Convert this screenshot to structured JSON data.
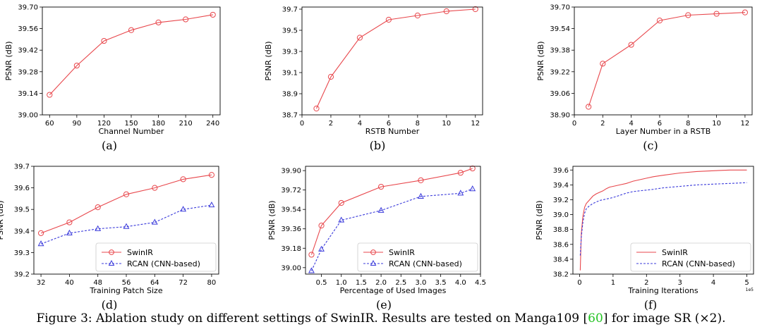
{
  "chart_data": [
    {
      "id": "a",
      "panel_label": "(a)",
      "type": "line",
      "xlabel": "Channel Number",
      "ylabel": "PSNR (dB)",
      "xlim": [
        52,
        248
      ],
      "ylim": [
        39.0,
        39.7
      ],
      "xticks": [
        60,
        90,
        120,
        150,
        180,
        210,
        240
      ],
      "xtick_labels": [
        "60",
        "90",
        "120",
        "150",
        "180",
        "210",
        "240"
      ],
      "yticks": [
        39.0,
        39.14,
        39.28,
        39.42,
        39.56,
        39.7
      ],
      "ytick_labels": [
        "39.00",
        "39.14",
        "39.28",
        "39.42",
        "39.56",
        "39.70"
      ],
      "series": [
        {
          "x": [
            60,
            90,
            120,
            150,
            180,
            210,
            240
          ],
          "y": [
            39.13,
            39.32,
            39.48,
            39.55,
            39.6,
            39.62,
            39.65
          ],
          "color": "#e8474c",
          "marker": "circle",
          "dash": "solid"
        }
      ]
    },
    {
      "id": "b",
      "panel_label": "(b)",
      "type": "line",
      "xlabel": "RSTB Number",
      "ylabel": "PSNR (dB)",
      "xlim": [
        0,
        12.5
      ],
      "ylim": [
        38.7,
        39.72
      ],
      "xticks": [
        0,
        2,
        4,
        6,
        8,
        10,
        12
      ],
      "xtick_labels": [
        "0",
        "2",
        "4",
        "6",
        "8",
        "10",
        "12"
      ],
      "yticks": [
        38.7,
        38.9,
        39.1,
        39.3,
        39.5,
        39.7
      ],
      "ytick_labels": [
        "38.7",
        "38.9",
        "39.1",
        "39.3",
        "39.5",
        "39.7"
      ],
      "series": [
        {
          "x": [
            1,
            2,
            4,
            6,
            8,
            10,
            12
          ],
          "y": [
            38.76,
            39.06,
            39.43,
            39.6,
            39.64,
            39.68,
            39.7
          ],
          "color": "#e8474c",
          "marker": "circle",
          "dash": "solid"
        }
      ]
    },
    {
      "id": "c",
      "panel_label": "(c)",
      "type": "line",
      "xlabel": "Layer Number in a RSTB",
      "ylabel": "PSNR (dB)",
      "xlim": [
        0,
        12.5
      ],
      "ylim": [
        38.9,
        39.7
      ],
      "xticks": [
        0,
        2,
        4,
        6,
        8,
        10,
        12
      ],
      "xtick_labels": [
        "0",
        "2",
        "4",
        "6",
        "8",
        "10",
        "12"
      ],
      "yticks": [
        38.9,
        39.06,
        39.22,
        39.38,
        39.54,
        39.7
      ],
      "ytick_labels": [
        "38.90",
        "39.06",
        "39.22",
        "39.38",
        "39.54",
        "39.70"
      ],
      "series": [
        {
          "x": [
            1,
            2,
            4,
            6,
            8,
            10,
            12
          ],
          "y": [
            38.96,
            39.28,
            39.42,
            39.6,
            39.64,
            39.65,
            39.66
          ],
          "color": "#e8474c",
          "marker": "circle",
          "dash": "solid"
        }
      ]
    },
    {
      "id": "d",
      "panel_label": "(d)",
      "type": "line",
      "xlabel": "Training Patch Size",
      "ylabel": "PSNR (dB)",
      "xlim": [
        30,
        82
      ],
      "ylim": [
        39.2,
        39.7
      ],
      "xticks": [
        32,
        40,
        48,
        56,
        64,
        72,
        80
      ],
      "xtick_labels": [
        "32",
        "40",
        "48",
        "56",
        "64",
        "72",
        "80"
      ],
      "yticks": [
        39.2,
        39.3,
        39.4,
        39.5,
        39.6,
        39.7
      ],
      "ytick_labels": [
        "39.2",
        "39.3",
        "39.4",
        "39.5",
        "39.6",
        "39.7"
      ],
      "legend": "lower-right",
      "series": [
        {
          "name": "SwinIR",
          "x": [
            32,
            40,
            48,
            56,
            64,
            72,
            80
          ],
          "y": [
            39.39,
            39.44,
            39.51,
            39.57,
            39.6,
            39.64,
            39.66
          ],
          "color": "#e8474c",
          "marker": "circle",
          "dash": "solid"
        },
        {
          "name": "RCAN (CNN-based)",
          "x": [
            32,
            40,
            48,
            56,
            64,
            72,
            80
          ],
          "y": [
            39.34,
            39.39,
            39.41,
            39.42,
            39.44,
            39.5,
            39.52
          ],
          "color": "#3b3bdb",
          "marker": "triangle",
          "dash": "dashed"
        }
      ]
    },
    {
      "id": "e",
      "panel_label": "(e)",
      "type": "line",
      "xlabel": "Percentage of Used Images",
      "ylabel": "PSNR (dB)",
      "xlim": [
        0.1,
        4.5
      ],
      "ylim": [
        38.94,
        39.94
      ],
      "xticks": [
        0.5,
        1.0,
        1.5,
        2.0,
        2.5,
        3.0,
        3.5,
        4.0,
        4.5
      ],
      "xtick_labels": [
        "0.5",
        "1.0",
        "1.5",
        "2.0",
        "2.5",
        "3.0",
        "3.5",
        "4.0",
        "4.5"
      ],
      "yticks": [
        39.0,
        39.18,
        39.36,
        39.54,
        39.72,
        39.9
      ],
      "ytick_labels": [
        "39.00",
        "39.18",
        "39.36",
        "39.54",
        "39.72",
        "39.90"
      ],
      "legend": "lower-right",
      "series": [
        {
          "name": "SwinIR",
          "x": [
            0.25,
            0.5,
            1.0,
            2.0,
            3.0,
            4.0,
            4.3
          ],
          "y": [
            39.12,
            39.39,
            39.6,
            39.75,
            39.81,
            39.88,
            39.92
          ],
          "color": "#e8474c",
          "marker": "circle",
          "dash": "solid"
        },
        {
          "name": "RCAN (CNN-based)",
          "x": [
            0.25,
            0.5,
            1.0,
            2.0,
            3.0,
            4.0,
            4.3
          ],
          "y": [
            38.97,
            39.17,
            39.44,
            39.53,
            39.66,
            39.69,
            39.73
          ],
          "color": "#3b3bdb",
          "marker": "triangle",
          "dash": "dashed"
        }
      ]
    },
    {
      "id": "f",
      "panel_label": "(f)",
      "type": "line",
      "xlabel": "Training Iterations",
      "ylabel": "PSNR (dB)",
      "x_offset_label": "1e5",
      "xlim": [
        -0.2,
        5.2
      ],
      "ylim": [
        38.2,
        39.65
      ],
      "xticks": [
        0,
        1,
        2,
        3,
        4,
        5
      ],
      "xtick_labels": [
        "0",
        "1",
        "2",
        "3",
        "4",
        "5"
      ],
      "yticks": [
        38.2,
        38.4,
        38.6,
        38.8,
        39.0,
        39.2,
        39.4,
        39.6
      ],
      "ytick_labels": [
        "38.2",
        "38.4",
        "38.6",
        "38.8",
        "39.0",
        "39.2",
        "39.4",
        "39.6"
      ],
      "legend": "lower-right",
      "series": [
        {
          "name": "SwinIR",
          "x": [
            0.02,
            0.05,
            0.1,
            0.15,
            0.2,
            0.3,
            0.4,
            0.5,
            0.6,
            0.7,
            0.8,
            0.9,
            1.0,
            1.2,
            1.4,
            1.6,
            1.8,
            2.0,
            2.2,
            2.5,
            3.0,
            3.5,
            4.0,
            4.5,
            5.0
          ],
          "y": [
            38.25,
            38.75,
            38.98,
            39.1,
            39.15,
            39.2,
            39.25,
            39.28,
            39.3,
            39.32,
            39.35,
            39.37,
            39.38,
            39.4,
            39.42,
            39.45,
            39.47,
            39.49,
            39.51,
            39.53,
            39.56,
            39.58,
            39.59,
            39.6,
            39.6
          ],
          "color": "#e8474c",
          "marker": "none",
          "dash": "solid"
        },
        {
          "name": "RCAN (CNN-based)",
          "x": [
            0.02,
            0.05,
            0.1,
            0.15,
            0.2,
            0.3,
            0.4,
            0.5,
            0.6,
            0.7,
            0.8,
            0.9,
            1.0,
            1.2,
            1.4,
            1.6,
            1.8,
            2.0,
            2.2,
            2.5,
            3.0,
            3.5,
            4.0,
            4.5,
            5.0
          ],
          "y": [
            38.45,
            38.7,
            38.9,
            39.02,
            39.08,
            39.12,
            39.15,
            39.17,
            39.19,
            39.2,
            39.21,
            39.22,
            39.23,
            39.26,
            39.29,
            39.31,
            39.32,
            39.33,
            39.34,
            39.36,
            39.38,
            39.4,
            39.41,
            39.42,
            39.43
          ],
          "color": "#3b3bdb",
          "marker": "none",
          "dash": "dashed"
        }
      ]
    }
  ],
  "caption": {
    "before": "Figure 3: Ablation study on different settings of SwinIR. Results are tested on Manga109 [",
    "cite": "60",
    "after": "] for image SR (×2)."
  }
}
